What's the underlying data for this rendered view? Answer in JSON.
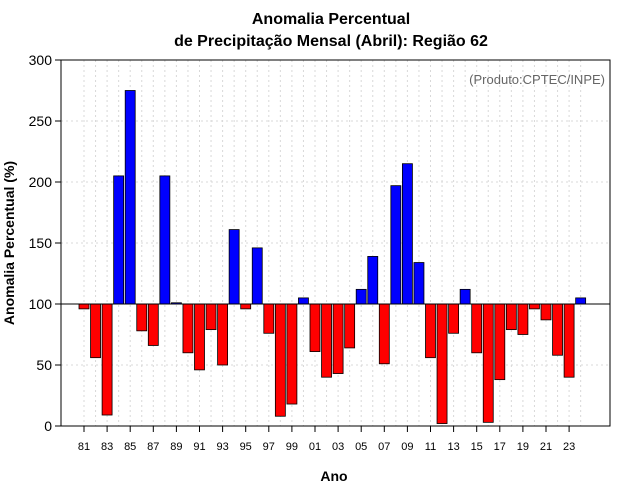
{
  "chart_data": {
    "type": "bar",
    "title": [
      "Anomalia Percentual",
      "de Precipitação Mensal (Abril): Região 62"
    ],
    "xlabel": "Ano",
    "ylabel": "Anomalia Percentual (%)",
    "credit": "(Produto:CPTEC/INPE)",
    "ylim": [
      0,
      300
    ],
    "yticks": [
      0,
      50,
      100,
      150,
      200,
      250,
      300
    ],
    "baseline": 100,
    "grid": true,
    "colors": {
      "above": "#0000ff",
      "below": "#ff0000",
      "outline": "#000000",
      "grid": "#d8d8d8",
      "baseline": "#000000"
    },
    "categories": [
      "81",
      "82",
      "83",
      "84",
      "85",
      "86",
      "87",
      "88",
      "89",
      "90",
      "91",
      "92",
      "93",
      "94",
      "95",
      "96",
      "97",
      "98",
      "99",
      "00",
      "01",
      "02",
      "03",
      "04",
      "05",
      "06",
      "07",
      "08",
      "09",
      "10",
      "11",
      "12",
      "13",
      "14",
      "15",
      "16",
      "17",
      "18",
      "19",
      "20",
      "21",
      "22",
      "23",
      "24"
    ],
    "tick_labels": [
      "81",
      "83",
      "85",
      "87",
      "89",
      "91",
      "93",
      "95",
      "97",
      "99",
      "01",
      "03",
      "05",
      "07",
      "09",
      "11",
      "13",
      "15",
      "17",
      "19",
      "21",
      "23"
    ],
    "values": [
      96,
      56,
      9,
      205,
      275,
      78,
      66,
      205,
      101,
      60,
      46,
      79,
      50,
      161,
      96,
      146,
      76,
      8,
      18,
      105,
      61,
      40,
      43,
      64,
      112,
      139,
      51,
      197,
      215,
      134,
      56,
      2,
      76,
      112,
      60,
      3,
      38,
      79,
      75,
      96,
      87,
      58,
      40,
      105
    ]
  }
}
